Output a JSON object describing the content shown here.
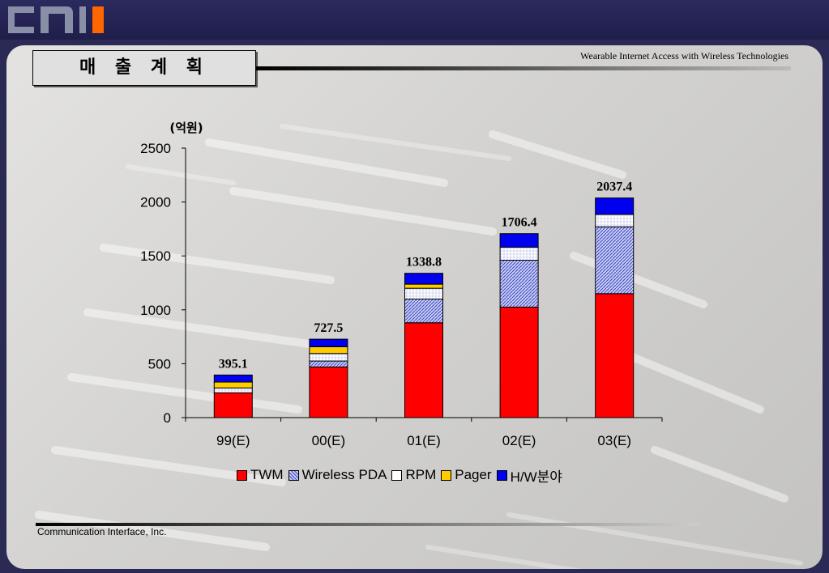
{
  "header": {
    "logo_text": "CNI"
  },
  "slide": {
    "title": "매 출 계 획",
    "subtitle": "Wearable Internet Access with Wireless Technologies",
    "footer": "Communication Interface, Inc."
  },
  "chart_data": {
    "type": "bar",
    "stacked": true,
    "unit_label": "(억원)",
    "categories": [
      "99(E)",
      "00(E)",
      "01(E)",
      "02(E)",
      "03(E)"
    ],
    "series": [
      {
        "name": "TWM",
        "color": "#ff0000",
        "values": [
          230,
          470,
          880,
          1025,
          1150
        ]
      },
      {
        "name": "Wireless PDA",
        "color": "#8b94d9",
        "values": [
          0,
          55,
          220,
          435,
          620
        ]
      },
      {
        "name": "RPM",
        "color": "#ffffff",
        "values": [
          45,
          70,
          100,
          120,
          115
        ]
      },
      {
        "name": "Pager",
        "color": "#ffcc00",
        "values": [
          55,
          62,
          38,
          0,
          0
        ]
      },
      {
        "name": "H/W분야",
        "color": "#0000ee",
        "values": [
          65.1,
          70.5,
          100.8,
          126.4,
          152.4
        ]
      }
    ],
    "totals": [
      "395.1",
      "727.5",
      "1338.8",
      "1706.4",
      "2037.4"
    ],
    "ylim": [
      0,
      2500
    ],
    "yticks": [
      "0",
      "500",
      "1000",
      "1500",
      "2000",
      "2500"
    ],
    "legend_position": "bottom",
    "grid": false
  }
}
